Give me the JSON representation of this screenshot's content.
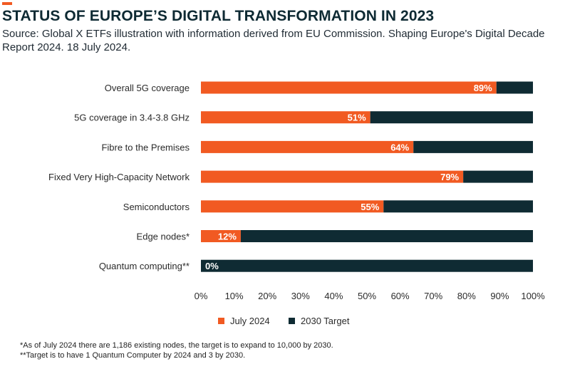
{
  "header": {
    "title": "STATUS OF EUROPE’S DIGITAL TRANSFORMATION IN 2023",
    "subtitle": "Source: Global X ETFs illustration with information derived from EU Commission. Shaping Europe's Digital Decade Report 2024. 18 July 2024."
  },
  "colors": {
    "accent": "#f15a22",
    "july_2024": "#f15a22",
    "target_2030": "#0f2b33"
  },
  "chart_data": {
    "type": "bar",
    "orientation": "horizontal",
    "stacked": true,
    "title": "STATUS OF EUROPE’S DIGITAL TRANSFORMATION IN 2023",
    "categories": [
      "Overall 5G coverage",
      "5G coverage in 3.4-3.8 GHz",
      "Fibre to the Premises",
      "Fixed Very High-Capacity Network",
      "Semiconductors",
      "Edge nodes*",
      "Quantum computing**"
    ],
    "series": [
      {
        "name": "July 2024",
        "values": [
          89,
          51,
          64,
          79,
          55,
          12,
          0
        ]
      },
      {
        "name": "2030 Target",
        "values": [
          11,
          49,
          36,
          21,
          45,
          88,
          100
        ]
      }
    ],
    "data_labels": [
      "89%",
      "51%",
      "64%",
      "79%",
      "55%",
      "12%",
      "0%"
    ],
    "xlim": [
      0,
      100
    ],
    "xticks": [
      "0%",
      "10%",
      "20%",
      "30%",
      "40%",
      "50%",
      "60%",
      "70%",
      "80%",
      "90%",
      "100%"
    ],
    "xlabel": "",
    "ylabel": "",
    "legend": "bottom-center",
    "grid": false
  },
  "footnotes": [
    "*As of July 2024 there are 1,186 existing nodes, the target is to expand to 10,000 by 2030.",
    "**Target is to have 1 Quantum Computer by 2024 and 3 by 2030."
  ]
}
